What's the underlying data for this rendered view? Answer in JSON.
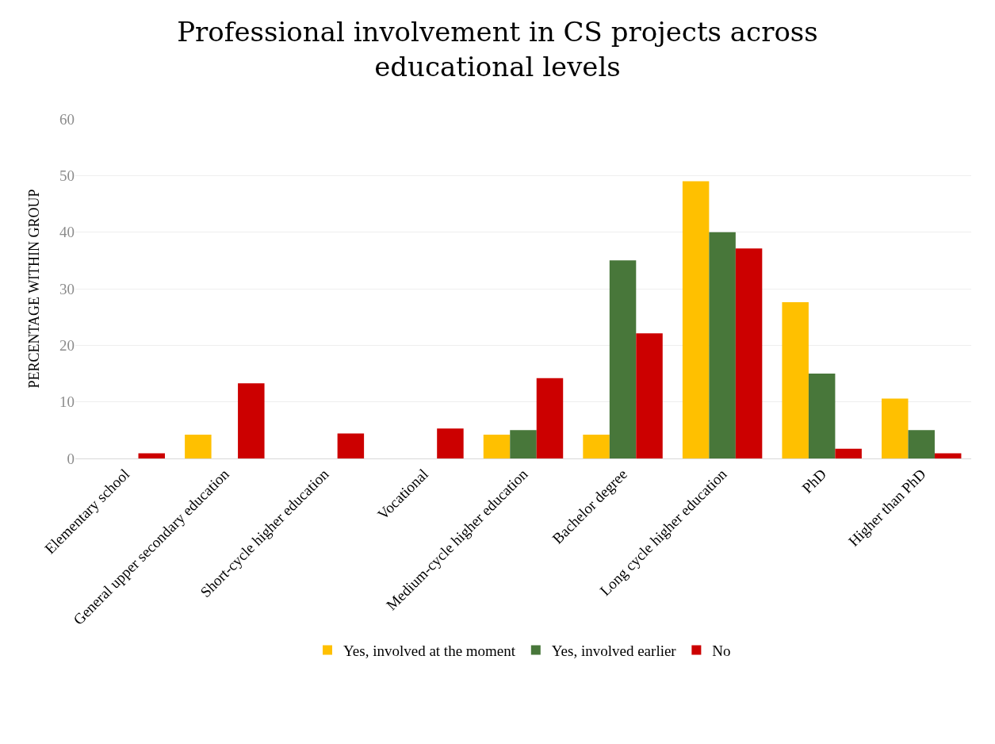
{
  "chart_data": {
    "type": "bar",
    "title": "Professional involvement in CS projects across educational levels",
    "ylabel": "PERCENTAGE WITHIN GROUP",
    "categories": [
      "Elementary school",
      "General upper secondary education",
      "Short-cycle higher education",
      "Vocational",
      "Medium-cycle higher education",
      "Bachelor degree",
      "Long cycle higher education",
      "PhD",
      "Higher than PhD"
    ],
    "series": [
      {
        "name": "Yes, involved at the moment",
        "color": "#ffc000",
        "values": [
          0,
          4.2,
          0,
          0,
          4.2,
          4.2,
          49,
          27.6,
          10.6
        ]
      },
      {
        "name": "Yes, involved earlier",
        "color": "#48773a",
        "values": [
          0,
          0,
          0,
          0,
          5,
          35,
          40,
          15,
          5
        ]
      },
      {
        "name": "No",
        "color": "#cc0000",
        "values": [
          0.9,
          13.3,
          4.4,
          5.3,
          14.2,
          22.1,
          37.1,
          1.7,
          0.9
        ]
      }
    ],
    "ylim": [
      0,
      60
    ],
    "yticks": [
      0,
      10,
      20,
      30,
      40,
      50,
      60
    ],
    "grid": "y",
    "legend": "bottom"
  }
}
